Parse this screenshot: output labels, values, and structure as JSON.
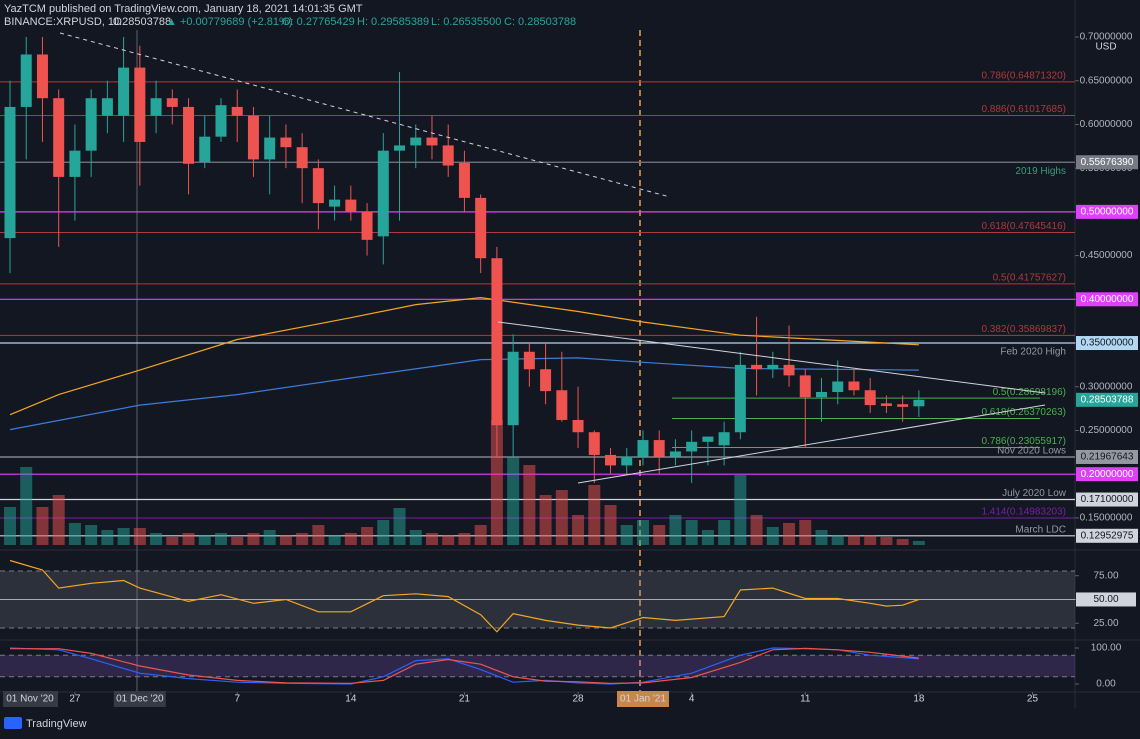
{
  "header": {
    "author_line": "YazTCM published on TradingView.com, January 18, 2021 14:01:35 GMT",
    "symbol": "BINANCE:XRPUSD, 1D",
    "price": "0.28503788",
    "change": "▲ +0.00779689 (+2.81%)",
    "ohlc": [
      "O: 0.27765429",
      "H: 0.29585389",
      "L: 0.26535500",
      "C: 0.28503788"
    ]
  },
  "cursor_label": "01 Nov '20",
  "footer": "TradingView",
  "chart_data": [
    {
      "type": "candlestick",
      "x": [
        "2020-11-23",
        "2020-11-24",
        "2020-11-25",
        "2020-11-26",
        "2020-11-27",
        "2020-11-28",
        "2020-11-29",
        "2020-11-30",
        "2020-12-01",
        "2020-12-02",
        "2020-12-03",
        "2020-12-04",
        "2020-12-05",
        "2020-12-06",
        "2020-12-07",
        "2020-12-08",
        "2020-12-09",
        "2020-12-10",
        "2020-12-11",
        "2020-12-12",
        "2020-12-13",
        "2020-12-14",
        "2020-12-15",
        "2020-12-16",
        "2020-12-17",
        "2020-12-18",
        "2020-12-19",
        "2020-12-20",
        "2020-12-21",
        "2020-12-22",
        "2020-12-23",
        "2020-12-24",
        "2020-12-25",
        "2020-12-26",
        "2020-12-27",
        "2020-12-28",
        "2020-12-29",
        "2020-12-30",
        "2020-12-31",
        "2021-01-01",
        "2021-01-02",
        "2021-01-03",
        "2021-01-04",
        "2021-01-05",
        "2021-01-06",
        "2021-01-07",
        "2021-01-08",
        "2021-01-09",
        "2021-01-10",
        "2021-01-11",
        "2021-01-12",
        "2021-01-13",
        "2021-01-14",
        "2021-01-15",
        "2021-01-16",
        "2021-01-17",
        "2021-01-18"
      ],
      "open": [
        0.47,
        0.62,
        0.68,
        0.63,
        0.54,
        0.57,
        0.61,
        0.61,
        0.665,
        0.61,
        0.63,
        0.62,
        0.557,
        0.586,
        0.62,
        0.61,
        0.56,
        0.585,
        0.574,
        0.55,
        0.506,
        0.514,
        0.5,
        0.472,
        0.57,
        0.576,
        0.585,
        0.576,
        0.556,
        0.516,
        0.447,
        0.256,
        0.34,
        0.32,
        0.296,
        0.262,
        0.248,
        0.222,
        0.21,
        0.22,
        0.239,
        0.22,
        0.226,
        0.237,
        0.233,
        0.248,
        0.325,
        0.32,
        0.325,
        0.313,
        0.288,
        0.294,
        0.306,
        0.296,
        0.281,
        0.28,
        0.27765429
      ],
      "high": [
        0.65,
        0.7,
        0.7,
        0.64,
        0.6,
        0.64,
        0.65,
        0.7,
        0.69,
        0.65,
        0.64,
        0.63,
        0.61,
        0.63,
        0.64,
        0.62,
        0.61,
        0.6,
        0.59,
        0.56,
        0.53,
        0.53,
        0.51,
        0.59,
        0.66,
        0.6,
        0.61,
        0.6,
        0.57,
        0.52,
        0.46,
        0.36,
        0.35,
        0.35,
        0.34,
        0.3,
        0.25,
        0.23,
        0.23,
        0.25,
        0.25,
        0.24,
        0.25,
        0.24,
        0.26,
        0.34,
        0.38,
        0.34,
        0.37,
        0.32,
        0.31,
        0.33,
        0.32,
        0.31,
        0.29,
        0.29,
        0.29585389
      ],
      "low": [
        0.43,
        0.56,
        0.58,
        0.46,
        0.49,
        0.54,
        0.59,
        0.58,
        0.53,
        0.59,
        0.6,
        0.52,
        0.55,
        0.58,
        0.58,
        0.54,
        0.52,
        0.55,
        0.51,
        0.48,
        0.49,
        0.49,
        0.45,
        0.44,
        0.49,
        0.55,
        0.56,
        0.54,
        0.5,
        0.43,
        0.22,
        0.22,
        0.3,
        0.28,
        0.26,
        0.23,
        0.19,
        0.2,
        0.2,
        0.21,
        0.2,
        0.21,
        0.19,
        0.21,
        0.21,
        0.24,
        0.29,
        0.31,
        0.3,
        0.23,
        0.26,
        0.28,
        0.29,
        0.27,
        0.27,
        0.26,
        0.265355
      ],
      "close": [
        0.62,
        0.68,
        0.63,
        0.54,
        0.57,
        0.63,
        0.63,
        0.665,
        0.58,
        0.63,
        0.62,
        0.555,
        0.586,
        0.622,
        0.61,
        0.56,
        0.585,
        0.574,
        0.55,
        0.51,
        0.514,
        0.5,
        0.468,
        0.57,
        0.576,
        0.585,
        0.576,
        0.553,
        0.516,
        0.447,
        0.256,
        0.34,
        0.32,
        0.295,
        0.262,
        0.248,
        0.222,
        0.21,
        0.22,
        0.239,
        0.22,
        0.226,
        0.237,
        0.243,
        0.248,
        0.325,
        0.32,
        0.325,
        0.313,
        0.288,
        0.294,
        0.306,
        0.296,
        0.279,
        0.278,
        0.277,
        0.28503788
      ],
      "volume": [
        38,
        78,
        38,
        50,
        22,
        20,
        15,
        17,
        17,
        12,
        8,
        12,
        10,
        12,
        8,
        12,
        15,
        10,
        12,
        20,
        10,
        12,
        18,
        25,
        37,
        15,
        12,
        10,
        12,
        20,
        125,
        88,
        80,
        50,
        55,
        30,
        60,
        40,
        20,
        25,
        20,
        30,
        25,
        15,
        25,
        70,
        30,
        18,
        22,
        25,
        15,
        10,
        10,
        10,
        8,
        6,
        4
      ],
      "volume_lim": [
        0,
        515
      ],
      "up_color": "#26a69a",
      "down_color": "#ef5350",
      "ylim": [
        0.119,
        0.708
      ],
      "currency": "USD",
      "yticks": [
        {
          "value": 0.7,
          "label": "0.70000000"
        },
        {
          "value": 0.65,
          "label": "0.65000000"
        },
        {
          "value": 0.6,
          "label": "0.60000000"
        },
        {
          "value": 0.55,
          "label": "0.55000000"
        },
        {
          "value": 0.5,
          "label": "0.50000000"
        },
        {
          "value": 0.45,
          "label": "0.45000000"
        },
        {
          "value": 0.4,
          "label": "0.40000000"
        },
        {
          "value": 0.35,
          "label": "0.35000000"
        },
        {
          "value": 0.3,
          "label": "0.30000000"
        },
        {
          "value": 0.25,
          "label": "0.25000000"
        },
        {
          "value": 0.2,
          "label": "0.20000000"
        },
        {
          "value": 0.15,
          "label": "0.15000000"
        }
      ],
      "xticks": [
        {
          "value": "2020-11-27",
          "label": "27"
        },
        {
          "value": "2020-12-01",
          "label": "01 Dec '20"
        },
        {
          "value": "2020-12-07",
          "label": "7"
        },
        {
          "value": "2020-12-14",
          "label": "14"
        },
        {
          "value": "2020-12-21",
          "label": "21"
        },
        {
          "value": "2020-12-28",
          "label": "28"
        },
        {
          "value": "2021-01-01",
          "label": "01 Jan '21"
        },
        {
          "value": "2021-01-04",
          "label": "4"
        },
        {
          "value": "2021-01-11",
          "label": "11"
        },
        {
          "value": "2021-01-18",
          "label": "18"
        },
        {
          "value": "2021-01-25",
          "label": "25"
        }
      ],
      "levels": [
        {
          "value": 0.6487132,
          "label": "0.786(0.64871320)",
          "color": "#b0393b"
        },
        {
          "value": 0.61017685,
          "label": "0.886(0.61017685)",
          "color": "#b0393b"
        },
        {
          "value": 0.5567639,
          "label": "0.55676390",
          "color": "#787b86",
          "note": "2019 Highs",
          "note_color": "#3c9c7c"
        },
        {
          "value": 0.5,
          "label": "0.50000000",
          "color": "#e040fb"
        },
        {
          "value": 0.47645416,
          "label": "0.618(0.47645416)",
          "color": "#b0393b"
        },
        {
          "value": 0.41757627,
          "label": "0.5(0.41757627)",
          "color": "#b0393b"
        },
        {
          "value": 0.4,
          "label": "0.40000000",
          "color": "#e040fb"
        },
        {
          "value": 0.35869837,
          "label": "0.382(0.35869837)",
          "color": "#b0393b"
        },
        {
          "value": 0.35,
          "label": "0.35000000",
          "color": "#b2d7f2",
          "note": "Feb 2020 High",
          "note_color": "#9598a1"
        },
        {
          "value": 0.28698196,
          "label": "0.5(0.28698196)",
          "color": "#4caf50"
        },
        {
          "value": 0.26370263,
          "label": "0.618(0.26370263)",
          "color": "#4caf50"
        },
        {
          "value": 0.23055917,
          "label": "0.786(0.23055917)",
          "color": "#4caf50"
        },
        {
          "value": 0.21967643,
          "label": "0.21967643",
          "color": "#9598a1",
          "note": "Nov 2020 Lows",
          "note_color": "#9598a1"
        },
        {
          "value": 0.2,
          "label": "0.20000000",
          "color": "#e040fb"
        },
        {
          "value": 0.171,
          "label": "0.17100000",
          "color": "#d1d4dc",
          "note": "July 2020 Low",
          "note_color": "#9598a1"
        },
        {
          "value": 0.14983203,
          "label": "1.414(0.14983203)",
          "color": "#7b1fa2"
        },
        {
          "value": 0.12952975,
          "label": "0.12952975",
          "color": "#d1d4dc",
          "note": "March LDC",
          "note_color": "#9598a1"
        }
      ],
      "last": {
        "value": 0.28503788,
        "label": "0.28503788",
        "color": "#26a69a"
      },
      "series": [
        {
          "color": "#f5a623",
          "x": [
            "2020-11-23",
            "2020-11-26",
            "2020-12-01",
            "2020-12-07",
            "2020-12-14",
            "2020-12-18",
            "2020-12-22",
            "2020-12-28",
            "2021-01-01",
            "2021-01-07",
            "2021-01-18"
          ],
          "values": [
            0.268,
            0.291,
            0.319,
            0.354,
            0.379,
            0.394,
            0.402,
            0.386,
            0.374,
            0.359,
            0.348
          ]
        },
        {
          "color": "#3d7dd8",
          "x": [
            "2020-11-23",
            "2020-12-01",
            "2020-12-07",
            "2020-12-14",
            "2020-12-22",
            "2020-12-28",
            "2021-01-01",
            "2021-01-07",
            "2021-01-18"
          ],
          "values": [
            0.251,
            0.279,
            0.291,
            0.31,
            0.331,
            0.333,
            0.328,
            0.321,
            0.319
          ]
        }
      ]
    },
    {
      "type": "line",
      "ylim": [
        10.5,
        94.7
      ],
      "band": [
        20,
        80
      ],
      "band_color": "#787b86",
      "yticks": [
        {
          "value": 75,
          "label": "75.00"
        },
        {
          "value": 50,
          "label": "50.00"
        },
        {
          "value": 25,
          "label": "25.00"
        }
      ],
      "series": [
        {
          "color": "#f5a623",
          "x": [
            "2020-11-23",
            "2020-11-25",
            "2020-11-26",
            "2020-11-28",
            "2020-11-30",
            "2020-12-01",
            "2020-12-04",
            "2020-12-06",
            "2020-12-08",
            "2020-12-10",
            "2020-12-12",
            "2020-12-14",
            "2020-12-16",
            "2020-12-18",
            "2020-12-20",
            "2020-12-22",
            "2020-12-23",
            "2020-12-24",
            "2020-12-26",
            "2020-12-28",
            "2020-12-30",
            "2021-01-01",
            "2021-01-03",
            "2021-01-06",
            "2021-01-07",
            "2021-01-09",
            "2021-01-11",
            "2021-01-13",
            "2021-01-15",
            "2021-01-16",
            "2021-01-17",
            "2021-01-18"
          ],
          "values": [
            91,
            81,
            62,
            67,
            70,
            62,
            48,
            55,
            46,
            50,
            37,
            37,
            54,
            56,
            53,
            34,
            16,
            35,
            28,
            23,
            20,
            31,
            28,
            32,
            60,
            62,
            51,
            51,
            46,
            43,
            44,
            50
          ]
        }
      ]
    },
    {
      "type": "line",
      "ylim": [
        -16.7,
        116.7
      ],
      "band": [
        20,
        80
      ],
      "band_color": "#7e57c2",
      "yticks": [
        {
          "value": 100,
          "label": "100.00"
        },
        {
          "value": 0,
          "label": "0.00"
        }
      ],
      "series": [
        {
          "color": "#2962ff",
          "x": [
            "2020-11-23",
            "2020-11-26",
            "2020-11-28",
            "2020-12-01",
            "2020-12-04",
            "2020-12-07",
            "2020-12-10",
            "2020-12-14",
            "2020-12-16",
            "2020-12-18",
            "2020-12-20",
            "2020-12-22",
            "2020-12-24",
            "2020-12-26",
            "2020-12-28",
            "2020-12-30",
            "2021-01-01",
            "2021-01-04",
            "2021-01-07",
            "2021-01-09",
            "2021-01-11",
            "2021-01-13",
            "2021-01-15",
            "2021-01-18"
          ],
          "values": [
            100,
            95,
            70,
            30,
            15,
            5,
            2,
            0,
            20,
            65,
            70,
            40,
            5,
            10,
            3,
            0,
            5,
            30,
            80,
            100,
            98,
            95,
            80,
            70
          ]
        },
        {
          "color": "#ef5350",
          "x": [
            "2020-11-23",
            "2020-11-26",
            "2020-11-28",
            "2020-12-01",
            "2020-12-04",
            "2020-12-07",
            "2020-12-10",
            "2020-12-14",
            "2020-12-16",
            "2020-12-18",
            "2020-12-20",
            "2020-12-22",
            "2020-12-24",
            "2020-12-26",
            "2020-12-28",
            "2020-12-30",
            "2021-01-01",
            "2021-01-04",
            "2021-01-07",
            "2021-01-09",
            "2021-01-11",
            "2021-01-13",
            "2021-01-15",
            "2021-01-18"
          ],
          "values": [
            98,
            98,
            85,
            50,
            25,
            10,
            3,
            2,
            10,
            55,
            68,
            55,
            20,
            8,
            6,
            2,
            3,
            18,
            60,
            95,
            99,
            95,
            88,
            72
          ]
        }
      ]
    }
  ]
}
